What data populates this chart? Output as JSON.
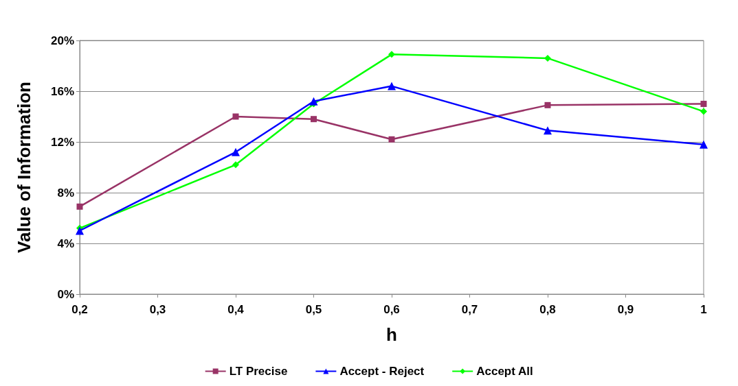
{
  "chart_data": {
    "type": "line",
    "xlabel": "h",
    "ylabel": "Value of Information",
    "x": [
      0.2,
      0.4,
      0.5,
      0.6,
      0.8,
      1
    ],
    "series": [
      {
        "name": "LT Precise",
        "color": "#993366",
        "marker": "square",
        "values": [
          6.9,
          14.0,
          13.8,
          12.2,
          14.9,
          15.0
        ]
      },
      {
        "name": "Accept - Reject",
        "color": "#0000ff",
        "marker": "triangle",
        "values": [
          5.0,
          11.2,
          15.2,
          16.4,
          12.9,
          11.8
        ]
      },
      {
        "name": "Accept All",
        "color": "#00ff00",
        "marker": "diamond",
        "values": [
          5.2,
          10.2,
          15.0,
          18.9,
          18.6,
          14.4
        ]
      }
    ],
    "xlim": [
      0.2,
      1
    ],
    "xticks": [
      {
        "value": 0.2,
        "label": "0,2"
      },
      {
        "value": 0.3,
        "label": "0,3"
      },
      {
        "value": 0.4,
        "label": "0,4"
      },
      {
        "value": 0.5,
        "label": "0,5"
      },
      {
        "value": 0.6,
        "label": "0,6"
      },
      {
        "value": 0.7,
        "label": "0,7"
      },
      {
        "value": 0.8,
        "label": "0,8"
      },
      {
        "value": 0.9,
        "label": "0,9"
      },
      {
        "value": 1,
        "label": "1"
      }
    ],
    "ylim": [
      0,
      20
    ],
    "yticks": [
      {
        "value": 0,
        "label": "0%"
      },
      {
        "value": 4,
        "label": "4%"
      },
      {
        "value": 8,
        "label": "8%"
      },
      {
        "value": 12,
        "label": "12%"
      },
      {
        "value": 16,
        "label": "16%"
      },
      {
        "value": 20,
        "label": "20%"
      }
    ],
    "grid": "y",
    "legend": "bottom",
    "line_style": "solid"
  }
}
